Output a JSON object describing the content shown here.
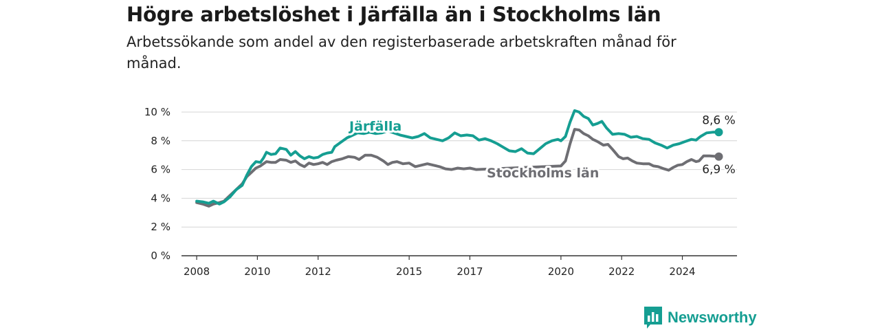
{
  "title": "Högre arbetslöshet i Järfälla än i Stockholms län",
  "subtitle": "Arbetssökande som andel av den registerbaserade arbetskraften månad för månad.",
  "brand": {
    "name": "Newsworthy",
    "icon": "bar-chart-badge-icon",
    "color": "#159e92"
  },
  "chart_data": {
    "type": "line",
    "title": "Högre arbetslöshet i Järfälla än i Stockholms län",
    "subtitle": "Arbetssökande som andel av den registerbaserade arbetskraften månad för månad.",
    "xlabel": "",
    "ylabel": "",
    "xlim": [
      2007.5,
      2025.8
    ],
    "ylim": [
      0,
      10
    ],
    "x_ticks": [
      2008,
      2010,
      2012,
      2015,
      2017,
      2020,
      2022,
      2024
    ],
    "y_ticks": [
      {
        "value": 0,
        "label": "0 %"
      },
      {
        "value": 2,
        "label": "2 %"
      },
      {
        "value": 4,
        "label": "4 %"
      },
      {
        "value": 6,
        "label": "6 %"
      },
      {
        "value": 8,
        "label": "8 %"
      },
      {
        "value": 10,
        "label": "10 %"
      }
    ],
    "grid": "horizontal",
    "series": [
      {
        "name": "Järfälla",
        "color": "#159e92",
        "end_label": "8,6 %",
        "points": [
          [
            2008.0,
            3.8
          ],
          [
            2008.2,
            3.75
          ],
          [
            2008.4,
            3.65
          ],
          [
            2008.55,
            3.8
          ],
          [
            2008.75,
            3.6
          ],
          [
            2008.9,
            3.75
          ],
          [
            2009.1,
            4.1
          ],
          [
            2009.3,
            4.6
          ],
          [
            2009.5,
            4.9
          ],
          [
            2009.65,
            5.6
          ],
          [
            2009.8,
            6.2
          ],
          [
            2009.95,
            6.55
          ],
          [
            2010.1,
            6.5
          ],
          [
            2010.2,
            6.8
          ],
          [
            2010.3,
            7.2
          ],
          [
            2010.45,
            7.05
          ],
          [
            2010.6,
            7.1
          ],
          [
            2010.75,
            7.5
          ],
          [
            2010.95,
            7.4
          ],
          [
            2011.1,
            7.0
          ],
          [
            2011.25,
            7.25
          ],
          [
            2011.4,
            6.95
          ],
          [
            2011.55,
            6.75
          ],
          [
            2011.7,
            6.9
          ],
          [
            2011.85,
            6.8
          ],
          [
            2012.0,
            6.85
          ],
          [
            2012.15,
            7.05
          ],
          [
            2012.3,
            7.15
          ],
          [
            2012.45,
            7.2
          ],
          [
            2012.55,
            7.6
          ],
          [
            2012.75,
            7.9
          ],
          [
            2012.95,
            8.2
          ],
          [
            2013.15,
            8.4
          ],
          [
            2013.3,
            8.55
          ],
          [
            2013.5,
            8.5
          ],
          [
            2013.7,
            8.6
          ],
          [
            2013.9,
            8.5
          ],
          [
            2014.1,
            8.55
          ],
          [
            2014.3,
            8.7
          ],
          [
            2014.5,
            8.55
          ],
          [
            2014.7,
            8.4
          ],
          [
            2014.9,
            8.3
          ],
          [
            2015.1,
            8.2
          ],
          [
            2015.3,
            8.3
          ],
          [
            2015.5,
            8.5
          ],
          [
            2015.7,
            8.2
          ],
          [
            2015.9,
            8.1
          ],
          [
            2016.1,
            8.0
          ],
          [
            2016.3,
            8.2
          ],
          [
            2016.5,
            8.55
          ],
          [
            2016.7,
            8.35
          ],
          [
            2016.9,
            8.4
          ],
          [
            2017.1,
            8.35
          ],
          [
            2017.3,
            8.05
          ],
          [
            2017.5,
            8.15
          ],
          [
            2017.7,
            8.0
          ],
          [
            2017.9,
            7.8
          ],
          [
            2018.1,
            7.55
          ],
          [
            2018.3,
            7.3
          ],
          [
            2018.5,
            7.25
          ],
          [
            2018.7,
            7.45
          ],
          [
            2018.9,
            7.15
          ],
          [
            2019.1,
            7.1
          ],
          [
            2019.3,
            7.45
          ],
          [
            2019.5,
            7.8
          ],
          [
            2019.7,
            8.0
          ],
          [
            2019.9,
            8.1
          ],
          [
            2020.0,
            8.0
          ],
          [
            2020.15,
            8.3
          ],
          [
            2020.3,
            9.3
          ],
          [
            2020.45,
            10.1
          ],
          [
            2020.6,
            10.0
          ],
          [
            2020.75,
            9.7
          ],
          [
            2020.9,
            9.55
          ],
          [
            2021.05,
            9.1
          ],
          [
            2021.2,
            9.2
          ],
          [
            2021.35,
            9.35
          ],
          [
            2021.5,
            8.9
          ],
          [
            2021.7,
            8.45
          ],
          [
            2021.9,
            8.5
          ],
          [
            2022.1,
            8.45
          ],
          [
            2022.3,
            8.25
          ],
          [
            2022.5,
            8.3
          ],
          [
            2022.7,
            8.15
          ],
          [
            2022.9,
            8.1
          ],
          [
            2023.1,
            7.85
          ],
          [
            2023.3,
            7.7
          ],
          [
            2023.5,
            7.5
          ],
          [
            2023.7,
            7.7
          ],
          [
            2023.9,
            7.8
          ],
          [
            2024.1,
            7.95
          ],
          [
            2024.3,
            8.1
          ],
          [
            2024.45,
            8.05
          ],
          [
            2024.6,
            8.3
          ],
          [
            2024.8,
            8.55
          ],
          [
            2025.0,
            8.6
          ],
          [
            2025.2,
            8.6
          ]
        ]
      },
      {
        "name": "Stockholms län",
        "color": "#6e6e73",
        "end_label": "6,9 %",
        "points": [
          [
            2008.0,
            3.7
          ],
          [
            2008.2,
            3.6
          ],
          [
            2008.4,
            3.45
          ],
          [
            2008.55,
            3.6
          ],
          [
            2008.75,
            3.7
          ],
          [
            2008.9,
            3.8
          ],
          [
            2009.1,
            4.2
          ],
          [
            2009.3,
            4.6
          ],
          [
            2009.5,
            5.0
          ],
          [
            2009.65,
            5.5
          ],
          [
            2009.8,
            5.8
          ],
          [
            2009.95,
            6.1
          ],
          [
            2010.1,
            6.25
          ],
          [
            2010.2,
            6.4
          ],
          [
            2010.3,
            6.55
          ],
          [
            2010.45,
            6.5
          ],
          [
            2010.6,
            6.5
          ],
          [
            2010.75,
            6.7
          ],
          [
            2010.95,
            6.65
          ],
          [
            2011.1,
            6.5
          ],
          [
            2011.25,
            6.6
          ],
          [
            2011.4,
            6.35
          ],
          [
            2011.55,
            6.2
          ],
          [
            2011.7,
            6.45
          ],
          [
            2011.85,
            6.35
          ],
          [
            2012.0,
            6.4
          ],
          [
            2012.15,
            6.5
          ],
          [
            2012.3,
            6.35
          ],
          [
            2012.45,
            6.55
          ],
          [
            2012.6,
            6.65
          ],
          [
            2012.8,
            6.75
          ],
          [
            2013.0,
            6.9
          ],
          [
            2013.2,
            6.85
          ],
          [
            2013.35,
            6.7
          ],
          [
            2013.55,
            7.0
          ],
          [
            2013.75,
            7.0
          ],
          [
            2013.95,
            6.85
          ],
          [
            2014.15,
            6.6
          ],
          [
            2014.3,
            6.35
          ],
          [
            2014.45,
            6.5
          ],
          [
            2014.6,
            6.55
          ],
          [
            2014.8,
            6.4
          ],
          [
            2015.0,
            6.45
          ],
          [
            2015.2,
            6.2
          ],
          [
            2015.4,
            6.3
          ],
          [
            2015.6,
            6.4
          ],
          [
            2015.8,
            6.3
          ],
          [
            2016.0,
            6.2
          ],
          [
            2016.2,
            6.05
          ],
          [
            2016.4,
            6.0
          ],
          [
            2016.6,
            6.1
          ],
          [
            2016.8,
            6.05
          ],
          [
            2017.0,
            6.1
          ],
          [
            2017.2,
            6.0
          ],
          [
            2020.0,
            6.25
          ],
          [
            2020.15,
            6.6
          ],
          [
            2020.3,
            7.8
          ],
          [
            2020.45,
            8.8
          ],
          [
            2020.6,
            8.75
          ],
          [
            2020.75,
            8.5
          ],
          [
            2020.9,
            8.35
          ],
          [
            2021.05,
            8.1
          ],
          [
            2021.2,
            7.95
          ],
          [
            2021.4,
            7.7
          ],
          [
            2021.55,
            7.75
          ],
          [
            2021.7,
            7.4
          ],
          [
            2021.9,
            6.9
          ],
          [
            2022.05,
            6.75
          ],
          [
            2022.2,
            6.8
          ],
          [
            2022.35,
            6.6
          ],
          [
            2022.5,
            6.45
          ],
          [
            2022.7,
            6.4
          ],
          [
            2022.9,
            6.4
          ],
          [
            2023.05,
            6.25
          ],
          [
            2023.2,
            6.2
          ],
          [
            2023.4,
            6.05
          ],
          [
            2023.55,
            5.95
          ],
          [
            2023.7,
            6.15
          ],
          [
            2023.85,
            6.3
          ],
          [
            2024.0,
            6.35
          ],
          [
            2024.15,
            6.55
          ],
          [
            2024.3,
            6.7
          ],
          [
            2024.45,
            6.55
          ],
          [
            2024.55,
            6.6
          ],
          [
            2024.7,
            6.95
          ],
          [
            2024.9,
            6.95
          ],
          [
            2025.2,
            6.9
          ]
        ]
      }
    ]
  }
}
